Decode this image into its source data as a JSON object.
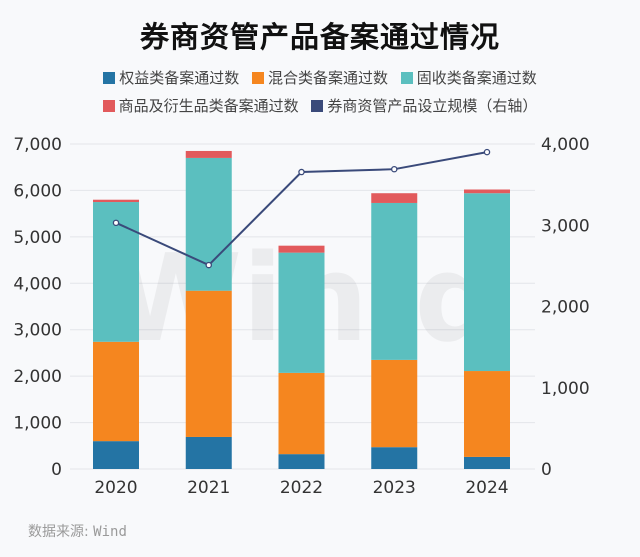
{
  "title": "券商资管产品备案通过情况",
  "source": {
    "label": "数据来源:",
    "name": "Wind"
  },
  "watermark": "Win.d",
  "colors": {
    "equity": "#2474a4",
    "mixed": "#f5861f",
    "fixed_income": "#5bbfbf",
    "commodity_derivative": "#e25a5c",
    "scale_line": "#3a4a7a",
    "grid": "#e3e5ea",
    "background": "#f8f9fb"
  },
  "legend": [
    {
      "name": "权益类备案通过数",
      "color_key": "equity"
    },
    {
      "name": "混合类备案通过数",
      "color_key": "mixed"
    },
    {
      "name": "固收类备案通过数",
      "color_key": "fixed_income"
    },
    {
      "name": "商品及衍生品类备案通过数",
      "color_key": "commodity_derivative"
    },
    {
      "name": "券商资管产品设立规模（右轴）",
      "color_key": "scale_line"
    }
  ],
  "chart_data": {
    "type": "bar",
    "stacked": true,
    "title": "券商资管产品备案通过情况",
    "categories": [
      "2020",
      "2021",
      "2022",
      "2023",
      "2024"
    ],
    "series": [
      {
        "name": "权益类备案通过数",
        "type": "bar",
        "axis": "left",
        "values": [
          600,
          690,
          320,
          470,
          260
        ]
      },
      {
        "name": "混合类备案通过数",
        "type": "bar",
        "axis": "left",
        "values": [
          2140,
          3150,
          1750,
          1880,
          1850
        ]
      },
      {
        "name": "固收类备案通过数",
        "type": "bar",
        "axis": "left",
        "values": [
          3010,
          2860,
          2590,
          3380,
          3830
        ]
      },
      {
        "name": "商品及衍生品类备案通过数",
        "type": "bar",
        "axis": "left",
        "values": [
          50,
          150,
          150,
          210,
          80
        ]
      },
      {
        "name": "券商资管产品设立规模（右轴）",
        "type": "line",
        "axis": "right",
        "values": [
          3030,
          2510,
          3655,
          3690,
          3900
        ]
      }
    ],
    "y_left": {
      "lim": [
        0,
        7000
      ],
      "ticks": [
        0,
        1000,
        2000,
        3000,
        4000,
        5000,
        6000,
        7000
      ],
      "tick_labels": [
        "0",
        "1,000",
        "2,000",
        "3,000",
        "4,000",
        "5,000",
        "6,000",
        "7,000"
      ]
    },
    "y_right": {
      "lim": [
        0,
        4000
      ],
      "ticks": [
        0,
        1000,
        2000,
        3000,
        4000
      ],
      "tick_labels": [
        "0",
        "1,000",
        "2,000",
        "3,000",
        "4,000"
      ]
    },
    "xlabel": "",
    "ylabel": "",
    "grid": true,
    "legend_position": "top"
  }
}
